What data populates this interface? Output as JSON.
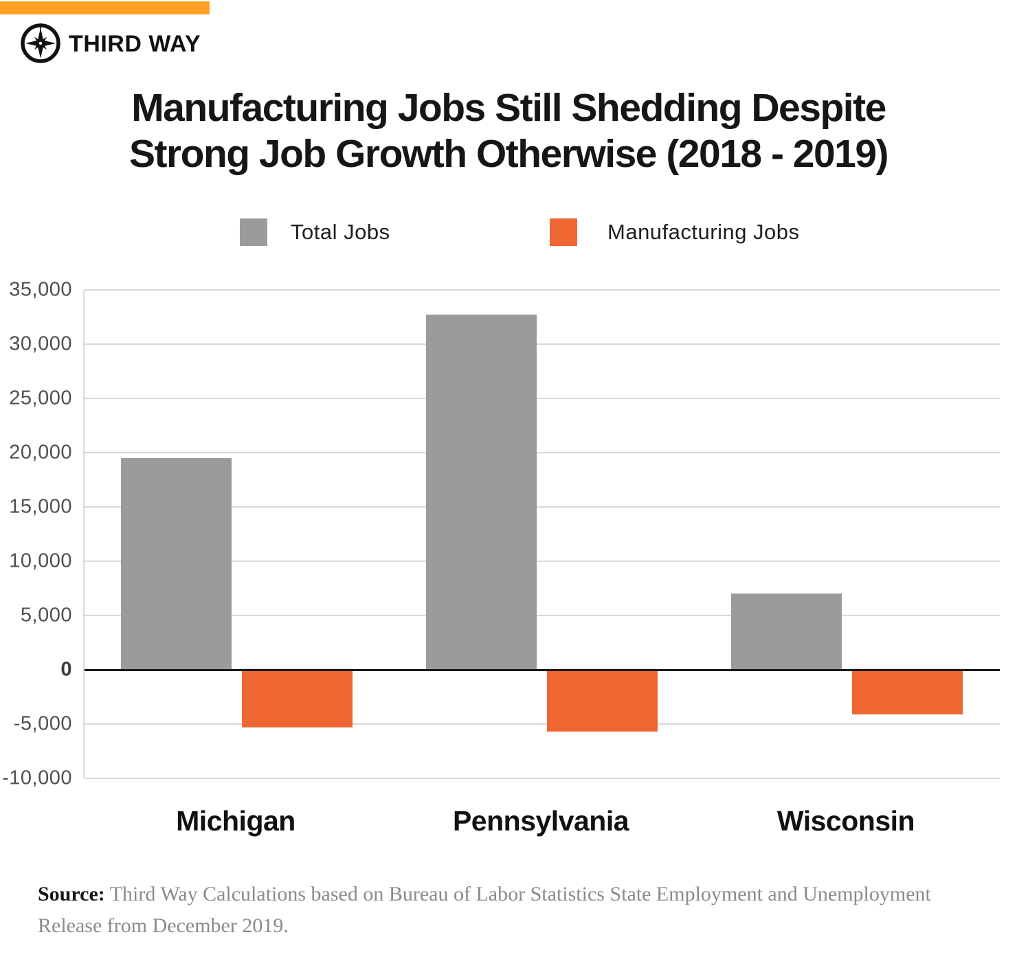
{
  "brand": {
    "name": "THIRD WAY"
  },
  "banner_color": "#FBA226",
  "title": {
    "line1": "Manufacturing Jobs Still Shedding Despite",
    "line2": "Strong Job Growth Otherwise (2018 - 2019)"
  },
  "legend": {
    "total": {
      "label": "Total Jobs",
      "color": "#9B9B9B"
    },
    "manufacturing": {
      "label": "Manufacturing Jobs",
      "color": "#EE6732"
    }
  },
  "chart_data": {
    "type": "bar",
    "categories": [
      "Michigan",
      "Pennsylvania",
      "Wisconsin"
    ],
    "series": [
      {
        "name": "Total Jobs",
        "color": "#9B9B9B",
        "values": [
          19500,
          32700,
          7000
        ]
      },
      {
        "name": "Manufacturing Jobs",
        "color": "#EE6732",
        "values": [
          -5300,
          -5700,
          -4100
        ]
      }
    ],
    "title": "Manufacturing Jobs Still Shedding Despite Strong Job Growth Otherwise (2018 - 2019)",
    "xlabel": "",
    "ylabel": "",
    "ylim": [
      -10000,
      35000
    ],
    "ytick_step": 5000,
    "grid": true,
    "legend_position": "top",
    "zero_line": true
  },
  "source": {
    "label": "Source:",
    "text": "Third Way Calculations based on Bureau of Labor Statistics State Employment and Unemployment Release from December 2019."
  },
  "colors": {
    "banner": "#FBA226",
    "bar_gray": "#9B9B9B",
    "bar_orange": "#EE6732",
    "gridline": "#D9D9D9",
    "zero_line": "#1A1A1A"
  }
}
